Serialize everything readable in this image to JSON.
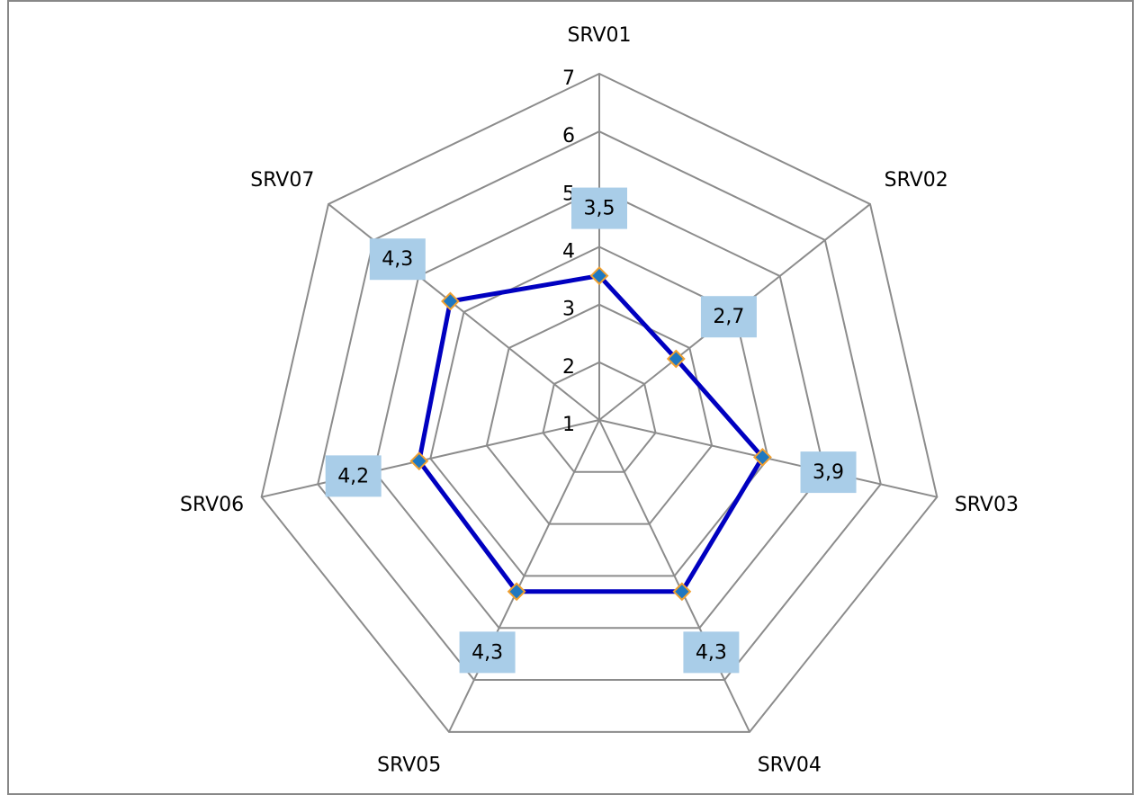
{
  "chart_data": {
    "type": "radar",
    "categories": [
      "SRV01",
      "SRV02",
      "SRV03",
      "SRV04",
      "SRV05",
      "SRV06",
      "SRV07"
    ],
    "values": [
      3.5,
      2.7,
      3.9,
      4.3,
      4.3,
      4.2,
      4.3
    ],
    "value_labels": [
      "3,5",
      "2,7",
      "3,9",
      "4,3",
      "4,3",
      "4,2",
      "4,3"
    ],
    "rlim": [
      1,
      7
    ],
    "rticks": [
      1,
      2,
      3,
      4,
      5,
      6,
      7
    ],
    "color": "#0000c0",
    "marker_color": "#1f78c1",
    "marker_edge_color": "#f0a030",
    "value_label_background": "#a9cde8",
    "grid": true
  }
}
